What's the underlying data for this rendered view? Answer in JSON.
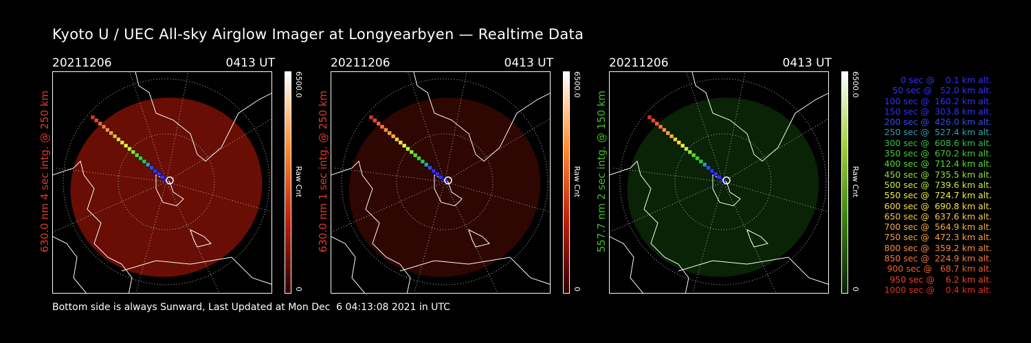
{
  "title": "Kyoto U / UEC All-sky Airglow Imager at Longyearbyen — Realtime Data",
  "footer": "Bottom side is always Sunward, Last Updated at Mon Dec  6 04:13:08 2021 in UTC",
  "panels": [
    {
      "date": "20211206",
      "time": "0413 UT",
      "side_label": "630.0 nm 4 sec intg. @ 250 km",
      "label_color": "#e03a28",
      "cb_max": "6500.0",
      "cb_min": "0",
      "cb_unit": "Raw Cnt",
      "cb_gradient": [
        "#ffffff",
        "#ff9030",
        "#c0200c",
        "#300000"
      ],
      "glow": "#7a1005",
      "glow_opacity": 0.85
    },
    {
      "date": "20211206",
      "time": "0413 UT",
      "side_label": "630.0 nm 1 sec intg. @ 250 km",
      "label_color": "#e03a28",
      "cb_max": "6500.0",
      "cb_min": "0",
      "cb_unit": "Raw Cnt",
      "cb_gradient": [
        "#ffffff",
        "#ff9030",
        "#c0200c",
        "#300000"
      ],
      "glow": "#3a0803",
      "glow_opacity": 0.8
    },
    {
      "date": "20211206",
      "time": "0413 UT",
      "side_label": "557.7 nm 2 sec intg. @ 150 km",
      "label_color": "#40c020",
      "cb_max": "6500.0",
      "cb_min": "0",
      "cb_unit": "Raw Cnt",
      "cb_gradient": [
        "#ffffff",
        "#a0d040",
        "#3a8010",
        "#0a2000"
      ],
      "glow": "#0d2a08",
      "glow_opacity": 0.8
    }
  ],
  "legend": [
    {
      "text": "   0 sec @    0.1 km alt.",
      "color": "#3030ff"
    },
    {
      "text": "  50 sec @   52.0 km alt.",
      "color": "#3030ff"
    },
    {
      "text": " 100 sec @  160.2 km alt.",
      "color": "#3030ff"
    },
    {
      "text": " 150 sec @  303.8 km alt.",
      "color": "#3030ff"
    },
    {
      "text": " 200 sec @  426.0 km alt.",
      "color": "#3050e0"
    },
    {
      "text": " 250 sec @  527.4 km alt.",
      "color": "#30a0b0"
    },
    {
      "text": " 300 sec @  608.6 km alt.",
      "color": "#30c050"
    },
    {
      "text": " 350 sec @  670.2 km alt.",
      "color": "#40d030"
    },
    {
      "text": " 400 sec @  712.4 km alt.",
      "color": "#50e030"
    },
    {
      "text": " 450 sec @  735.5 km alt.",
      "color": "#90e040"
    },
    {
      "text": " 500 sec @  739.6 km alt.",
      "color": "#c0f040"
    },
    {
      "text": " 550 sec @  724.7 km alt.",
      "color": "#f0f040"
    },
    {
      "text": " 600 sec @  690.8 km alt.",
      "color": "#f8e040"
    },
    {
      "text": " 650 sec @  637.6 km alt.",
      "color": "#f8c840"
    },
    {
      "text": " 700 sec @  564.9 km alt.",
      "color": "#f8b040"
    },
    {
      "text": " 750 sec @  472.3 km alt.",
      "color": "#f8a040"
    },
    {
      "text": " 800 sec @  359.2 km alt.",
      "color": "#f89040"
    },
    {
      "text": " 850 sec @  224.9 km alt.",
      "color": "#f87838"
    },
    {
      "text": " 900 sec @   68.7 km alt.",
      "color": "#f06030"
    },
    {
      "text": " 950 sec @    6.2 km alt.",
      "color": "#e84828"
    },
    {
      "text": "1000 sec @    0.4 km alt.",
      "color": "#e03020"
    }
  ]
}
